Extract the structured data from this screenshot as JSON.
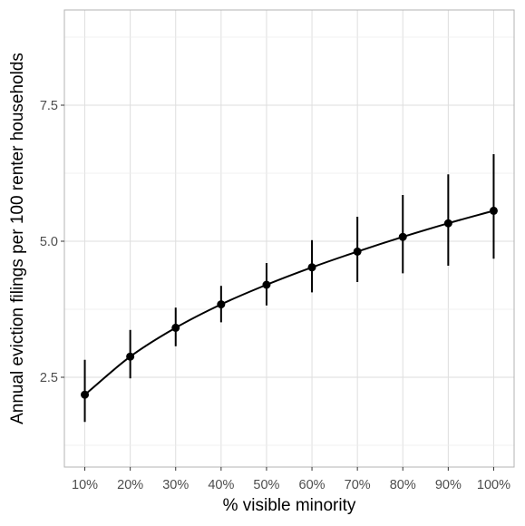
{
  "chart_data": {
    "type": "line",
    "xlabel": "% visible minority",
    "ylabel": "Annual eviction filings per 100 renter households",
    "x": [
      "10%",
      "20%",
      "30%",
      "40%",
      "50%",
      "60%",
      "70%",
      "80%",
      "90%",
      "100%"
    ],
    "y": [
      2.18,
      2.88,
      3.41,
      3.84,
      4.2,
      4.52,
      4.81,
      5.08,
      5.33,
      5.56
    ],
    "y_lower": [
      1.68,
      2.48,
      3.07,
      3.51,
      3.82,
      4.06,
      4.25,
      4.41,
      4.55,
      4.68
    ],
    "y_upper": [
      2.82,
      3.37,
      3.78,
      4.18,
      4.6,
      5.02,
      5.45,
      5.85,
      6.23,
      6.6
    ],
    "y_ticks": [
      2.5,
      5.0,
      7.5
    ],
    "y_tick_labels": [
      "2.5",
      "5.0",
      "7.5"
    ],
    "ylim": [
      0.85,
      9.25
    ],
    "xlim": [
      0.55,
      10.45
    ],
    "grid": true,
    "colors": {
      "line": "#000000",
      "grid": "#dedede",
      "panel_border": "#b3b3b3",
      "tick_text": "#4d4d4d"
    }
  }
}
